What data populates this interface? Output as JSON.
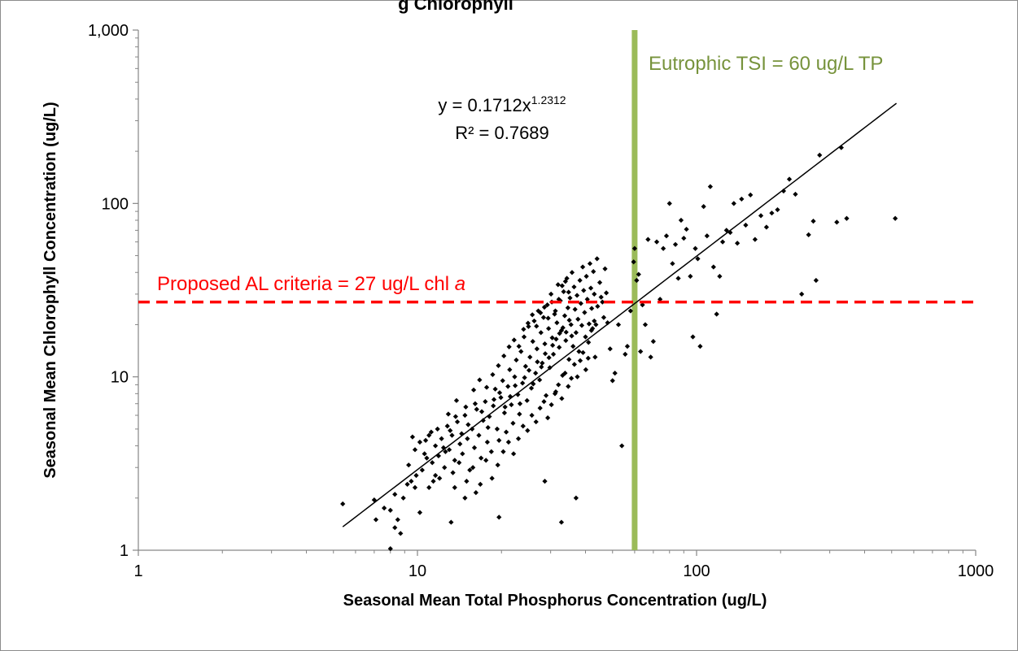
{
  "chart_data": {
    "type": "scatter",
    "title_fragment": "g   Chlorophyll",
    "xlabel": "Seasonal Mean Total Phosphorus Concentration (ug/L)",
    "ylabel": "Seasonal Mean Chlorophyll  Concentration (ug/L)",
    "xscale": "log",
    "yscale": "log",
    "xlim": [
      1,
      1000
    ],
    "ylim": [
      1,
      1000
    ],
    "x_ticks": [
      1,
      10,
      100,
      1000
    ],
    "x_tick_labels": [
      "1",
      "10",
      "100",
      "1000"
    ],
    "y_ticks": [
      1,
      10,
      100,
      1000
    ],
    "y_tick_labels": [
      "1",
      "10",
      "100",
      "1,000"
    ],
    "grid": false,
    "colors": {
      "points": "#000000",
      "trendline": "#000000",
      "criteria": "#ff0000",
      "eutrophic": "#9bbb59"
    },
    "trendline": {
      "type": "power",
      "a": 0.1712,
      "b": 1.2312,
      "x_range": [
        5.4,
        520
      ],
      "equation_prefix": "y = 0.1712x",
      "equation_exponent": "1.2312",
      "r_squared": "R² = 0.7689"
    },
    "reference_lines": {
      "horizontal": {
        "y": 27,
        "label_text": "Proposed AL criteria = 27 ug/L chl ",
        "label_italic": "a"
      },
      "vertical": {
        "x": 60,
        "label_text": "Eutrophic TSI = 60 ug/L TP"
      }
    },
    "points": [
      [
        5.4,
        1.85
      ],
      [
        7.0,
        1.95
      ],
      [
        7.1,
        1.5
      ],
      [
        7.6,
        1.75
      ],
      [
        8.0,
        1.7
      ],
      [
        8.3,
        2.1
      ],
      [
        8.3,
        1.35
      ],
      [
        8.5,
        1.5
      ],
      [
        8.7,
        1.25
      ],
      [
        8.0,
        1.02
      ],
      [
        8.9,
        2.0
      ],
      [
        9.2,
        2.4
      ],
      [
        9.5,
        2.5
      ],
      [
        9.8,
        2.3
      ],
      [
        10.2,
        1.65
      ],
      [
        11.0,
        2.3
      ],
      [
        11.6,
        2.7
      ],
      [
        13.2,
        1.45
      ],
      [
        13.6,
        2.3
      ],
      [
        14.8,
        2.0
      ],
      [
        16.2,
        2.15
      ],
      [
        19.6,
        1.55
      ],
      [
        28.6,
        2.5
      ],
      [
        32.8,
        1.45
      ],
      [
        37.0,
        2.0
      ],
      [
        9.6,
        4.5
      ],
      [
        9.8,
        3.8
      ],
      [
        10.2,
        4.2
      ],
      [
        10.6,
        3.6
      ],
      [
        11.0,
        4.6
      ],
      [
        11.3,
        3.2
      ],
      [
        11.6,
        4.0
      ],
      [
        11.9,
        3.5
      ],
      [
        12.2,
        4.4
      ],
      [
        12.5,
        3.0
      ],
      [
        12.8,
        5.2
      ],
      [
        13.0,
        3.8
      ],
      [
        13.3,
        4.6
      ],
      [
        13.6,
        3.3
      ],
      [
        13.9,
        5.5
      ],
      [
        14.2,
        4.1
      ],
      [
        14.5,
        3.6
      ],
      [
        14.8,
        6.0
      ],
      [
        15.1,
        4.4
      ],
      [
        15.4,
        2.9
      ],
      [
        15.7,
        5.0
      ],
      [
        16.0,
        3.9
      ],
      [
        16.3,
        6.5
      ],
      [
        16.6,
        4.6
      ],
      [
        16.9,
        3.4
      ],
      [
        17.2,
        5.6
      ],
      [
        17.5,
        7.2
      ],
      [
        17.8,
        4.2
      ],
      [
        18.1,
        5.9
      ],
      [
        18.4,
        3.7
      ],
      [
        18.7,
        6.8
      ],
      [
        19.0,
        8.5
      ],
      [
        19.3,
        5.0
      ],
      [
        19.6,
        4.3
      ],
      [
        19.9,
        7.6
      ],
      [
        20.2,
        9.5
      ],
      [
        20.5,
        6.2
      ],
      [
        20.8,
        4.8
      ],
      [
        21.1,
        8.8
      ],
      [
        21.4,
        11.0
      ],
      [
        21.7,
        6.9
      ],
      [
        22.0,
        5.4
      ],
      [
        22.3,
        10.0
      ],
      [
        22.6,
        12.5
      ],
      [
        22.9,
        7.9
      ],
      [
        23.2,
        6.1
      ],
      [
        23.5,
        14.0
      ],
      [
        23.8,
        9.2
      ],
      [
        24.1,
        17.0
      ],
      [
        24.4,
        11.5
      ],
      [
        24.7,
        7.3
      ],
      [
        25.0,
        19.5
      ],
      [
        25.3,
        13.0
      ],
      [
        25.6,
        8.6
      ],
      [
        25.9,
        16.0
      ],
      [
        26.2,
        21.0
      ],
      [
        26.5,
        10.5
      ],
      [
        26.8,
        14.5
      ],
      [
        27.1,
        24.0
      ],
      [
        27.4,
        9.6
      ],
      [
        27.7,
        18.0
      ],
      [
        28.0,
        12.0
      ],
      [
        28.3,
        22.0
      ],
      [
        28.6,
        15.5
      ],
      [
        28.9,
        7.8
      ],
      [
        29.2,
        26.0
      ],
      [
        29.5,
        19.0
      ],
      [
        29.8,
        11.3
      ],
      [
        30.1,
        30.0
      ],
      [
        30.4,
        16.8
      ],
      [
        30.7,
        13.5
      ],
      [
        31.0,
        23.0
      ],
      [
        31.3,
        8.2
      ],
      [
        31.6,
        20.5
      ],
      [
        31.9,
        34.0
      ],
      [
        32.2,
        14.8
      ],
      [
        32.5,
        27.5
      ],
      [
        32.8,
        18.5
      ],
      [
        33.1,
        10.2
      ],
      [
        33.4,
        31.0
      ],
      [
        33.7,
        22.5
      ],
      [
        34.0,
        16.2
      ],
      [
        34.3,
        37.0
      ],
      [
        34.6,
        25.0
      ],
      [
        34.9,
        12.6
      ],
      [
        35.2,
        28.5
      ],
      [
        35.5,
        20.0
      ],
      [
        35.8,
        40.0
      ],
      [
        36.1,
        15.0
      ],
      [
        36.4,
        33.0
      ],
      [
        36.7,
        24.5
      ],
      [
        37.0,
        18.0
      ],
      [
        37.3,
        29.5
      ],
      [
        37.6,
        21.5
      ],
      [
        37.9,
        14.0
      ],
      [
        38.2,
        36.0
      ],
      [
        38.5,
        26.5
      ],
      [
        38.8,
        19.8
      ],
      [
        39.1,
        43.0
      ],
      [
        39.4,
        31.5
      ],
      [
        39.7,
        23.5
      ],
      [
        40.0,
        17.0
      ],
      [
        40.3,
        38.0
      ],
      [
        40.6,
        28.0
      ],
      [
        40.9,
        12.8
      ],
      [
        41.2,
        20.2
      ],
      [
        41.5,
        45.0
      ],
      [
        41.8,
        32.5
      ],
      [
        42.1,
        24.8
      ],
      [
        42.4,
        19.0
      ],
      [
        42.7,
        40.5
      ],
      [
        43.0,
        30.0
      ],
      [
        43.3,
        13.0
      ],
      [
        43.6,
        20.0
      ],
      [
        44.0,
        48.0
      ],
      [
        45.0,
        35.0
      ],
      [
        46.0,
        27.0
      ],
      [
        47.0,
        42.0
      ],
      [
        48.0,
        20.5
      ],
      [
        49.0,
        14.5
      ],
      [
        50.0,
        9.5
      ],
      [
        51.0,
        10.5
      ],
      [
        52.5,
        20.0
      ],
      [
        54.0,
        4.0
      ],
      [
        55.5,
        13.5
      ],
      [
        56.5,
        15.0
      ],
      [
        58.0,
        24.0
      ],
      [
        59.5,
        46.0
      ],
      [
        60.0,
        55.0
      ],
      [
        61.0,
        36.0
      ],
      [
        62.0,
        39.0
      ],
      [
        63.0,
        14.0
      ],
      [
        64.0,
        26.0
      ],
      [
        65.5,
        20.0
      ],
      [
        67.0,
        62.0
      ],
      [
        68.5,
        13.0
      ],
      [
        70.0,
        16.0
      ],
      [
        72.0,
        60.0
      ],
      [
        74.0,
        28.0
      ],
      [
        76.0,
        55.0
      ],
      [
        78.0,
        65.0
      ],
      [
        80.0,
        100.0
      ],
      [
        82.0,
        45.0
      ],
      [
        84.0,
        58.0
      ],
      [
        86.0,
        37.0
      ],
      [
        88.0,
        80.0
      ],
      [
        90.0,
        63.0
      ],
      [
        92.0,
        71.0
      ],
      [
        95.0,
        38.0
      ],
      [
        97.0,
        17.0
      ],
      [
        99.0,
        55.0
      ],
      [
        101.0,
        48.0
      ],
      [
        103.0,
        15.0
      ],
      [
        106.0,
        96.0
      ],
      [
        109.0,
        65.0
      ],
      [
        112.0,
        125.0
      ],
      [
        115.0,
        43.0
      ],
      [
        118.0,
        23.0
      ],
      [
        121.0,
        38.0
      ],
      [
        124.0,
        60.0
      ],
      [
        128.0,
        70.0
      ],
      [
        132.0,
        68.0
      ],
      [
        136.0,
        100.0
      ],
      [
        140.0,
        59.0
      ],
      [
        145.0,
        106.0
      ],
      [
        150.0,
        75.0
      ],
      [
        156.0,
        112.0
      ],
      [
        162.0,
        62.0
      ],
      [
        170.0,
        85.0
      ],
      [
        178.0,
        73.0
      ],
      [
        186.0,
        88.0
      ],
      [
        195.0,
        92.0
      ],
      [
        205.0,
        118.0
      ],
      [
        215.0,
        138.0
      ],
      [
        226.0,
        113.0
      ],
      [
        238.0,
        30.0
      ],
      [
        252.0,
        66.0
      ],
      [
        262.0,
        79.0
      ],
      [
        268.0,
        36.0
      ],
      [
        276.0,
        190.0
      ],
      [
        318.0,
        78.0
      ],
      [
        330.0,
        210.0
      ],
      [
        345.0,
        82.0
      ],
      [
        515.0,
        82.0
      ],
      [
        11.2,
        4.8
      ],
      [
        12.0,
        2.6
      ],
      [
        12.6,
        3.7
      ],
      [
        13.4,
        2.8
      ],
      [
        14.1,
        3.2
      ],
      [
        15.0,
        2.5
      ],
      [
        15.8,
        3.0
      ],
      [
        16.8,
        2.4
      ],
      [
        17.6,
        3.3
      ],
      [
        18.5,
        2.6
      ],
      [
        19.4,
        3.1
      ],
      [
        20.3,
        3.7
      ],
      [
        21.2,
        4.2
      ],
      [
        22.1,
        3.6
      ],
      [
        23.0,
        4.4
      ],
      [
        23.9,
        5.2
      ],
      [
        24.8,
        4.9
      ],
      [
        25.7,
        6.0
      ],
      [
        26.6,
        5.5
      ],
      [
        27.5,
        6.6
      ],
      [
        28.4,
        7.2
      ],
      [
        29.3,
        5.8
      ],
      [
        30.2,
        6.9
      ],
      [
        31.1,
        8.0
      ],
      [
        32.0,
        9.0
      ],
      [
        32.9,
        7.5
      ],
      [
        33.8,
        10.5
      ],
      [
        34.7,
        8.8
      ],
      [
        35.6,
        9.8
      ],
      [
        36.5,
        11.8
      ],
      [
        37.4,
        10.0
      ],
      [
        38.3,
        12.4
      ],
      [
        39.2,
        13.8
      ],
      [
        40.1,
        11.0
      ],
      [
        41.0,
        15.8
      ],
      [
        42.0,
        18.5
      ],
      [
        43.0,
        21.0
      ],
      [
        44.2,
        25.5
      ],
      [
        45.5,
        28.8
      ],
      [
        46.5,
        22.0
      ],
      [
        47.5,
        30.5
      ],
      [
        10.4,
        2.9
      ],
      [
        10.8,
        3.4
      ],
      [
        11.4,
        2.5
      ],
      [
        12.4,
        3.9
      ],
      [
        13.1,
        4.9
      ],
      [
        13.7,
        5.9
      ],
      [
        14.4,
        4.7
      ],
      [
        15.2,
        5.3
      ],
      [
        16.1,
        7.0
      ],
      [
        17.0,
        6.3
      ],
      [
        17.9,
        5.1
      ],
      [
        18.8,
        7.4
      ],
      [
        19.7,
        8.1
      ],
      [
        20.6,
        6.7
      ],
      [
        21.5,
        7.7
      ],
      [
        22.4,
        8.9
      ],
      [
        23.3,
        7.0
      ],
      [
        24.2,
        9.9
      ],
      [
        25.1,
        10.9
      ],
      [
        26.0,
        9.1
      ],
      [
        26.9,
        12.2
      ],
      [
        27.8,
        11.4
      ],
      [
        28.7,
        13.6
      ],
      [
        29.6,
        12.9
      ],
      [
        30.5,
        15.2
      ],
      [
        31.4,
        16.5
      ],
      [
        32.3,
        17.8
      ],
      [
        33.2,
        19.2
      ],
      [
        34.1,
        18.1
      ],
      [
        35.0,
        21.2
      ],
      [
        9.3,
        3.1
      ],
      [
        9.9,
        2.7
      ],
      [
        10.7,
        4.3
      ],
      [
        11.8,
        5.0
      ],
      [
        12.9,
        6.1
      ],
      [
        13.8,
        7.3
      ],
      [
        14.9,
        6.7
      ],
      [
        15.9,
        8.4
      ],
      [
        16.7,
        9.6
      ],
      [
        17.7,
        8.7
      ],
      [
        18.6,
        10.3
      ],
      [
        19.5,
        11.6
      ],
      [
        20.4,
        13.2
      ],
      [
        21.3,
        14.9
      ],
      [
        22.2,
        16.3
      ],
      [
        23.1,
        15.0
      ],
      [
        24.0,
        18.8
      ],
      [
        24.9,
        20.4
      ],
      [
        25.8,
        22.8
      ],
      [
        26.7,
        19.6
      ],
      [
        27.6,
        23.4
      ],
      [
        28.5,
        25.2
      ],
      [
        29.4,
        21.8
      ],
      [
        30.3,
        27.0
      ],
      [
        31.2,
        24.0
      ],
      [
        32.1,
        28.0
      ],
      [
        33.0,
        33.5
      ],
      [
        33.9,
        35.5
      ],
      [
        34.8,
        30.8
      ],
      [
        35.7,
        17.2
      ]
    ]
  }
}
